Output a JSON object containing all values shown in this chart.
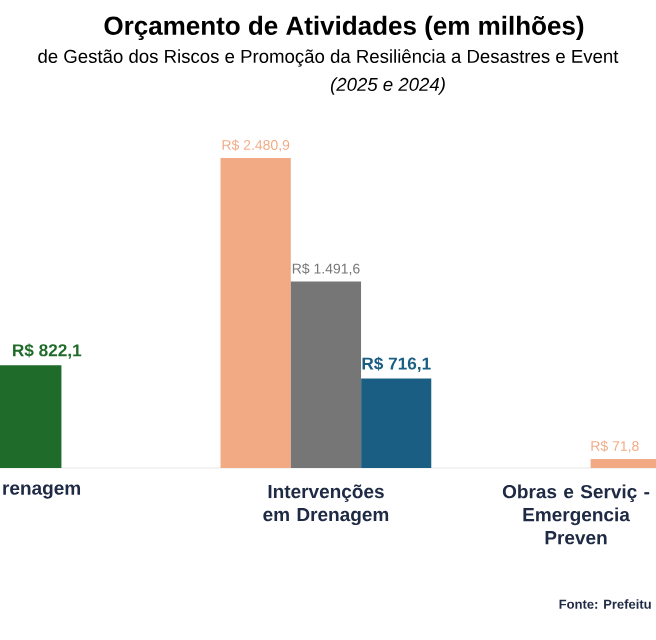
{
  "chart_data": {
    "type": "bar",
    "title": "Orçamento de Atividades (em milhões)",
    "subtitle": "de Gestão dos Riscos e Promoção da Resiliência a Desastres e Event",
    "annotations": [
      "(2025 e 2024)",
      "Fonte: Prefeitu"
    ],
    "categories": [
      "renagem",
      "Intervenções em Drenagem",
      "Obras e Serviç - Emergencia Preven"
    ],
    "series": [
      {
        "colors": [
          "#f2aa84",
          "#f2aa84",
          "#f2aa84"
        ],
        "values": [
          null,
          2480.9,
          71.8
        ],
        "value_labels": [
          null,
          "R$ 2.480,9",
          "R$ 71,8"
        ]
      },
      {
        "colors": [
          "#767676",
          "#767676",
          "#767676"
        ],
        "values": [
          null,
          1491.6,
          null
        ],
        "value_labels": [
          null,
          "R$ 1.491,6",
          null
        ]
      },
      {
        "colors": [
          "#1e6b2a",
          "#1b5e83",
          "#1b5e83"
        ],
        "values": [
          822.1,
          716.1,
          null
        ],
        "value_labels": [
          "R$ 822,1",
          "R$ 716,1",
          null
        ]
      }
    ],
    "data_labels": false
  }
}
